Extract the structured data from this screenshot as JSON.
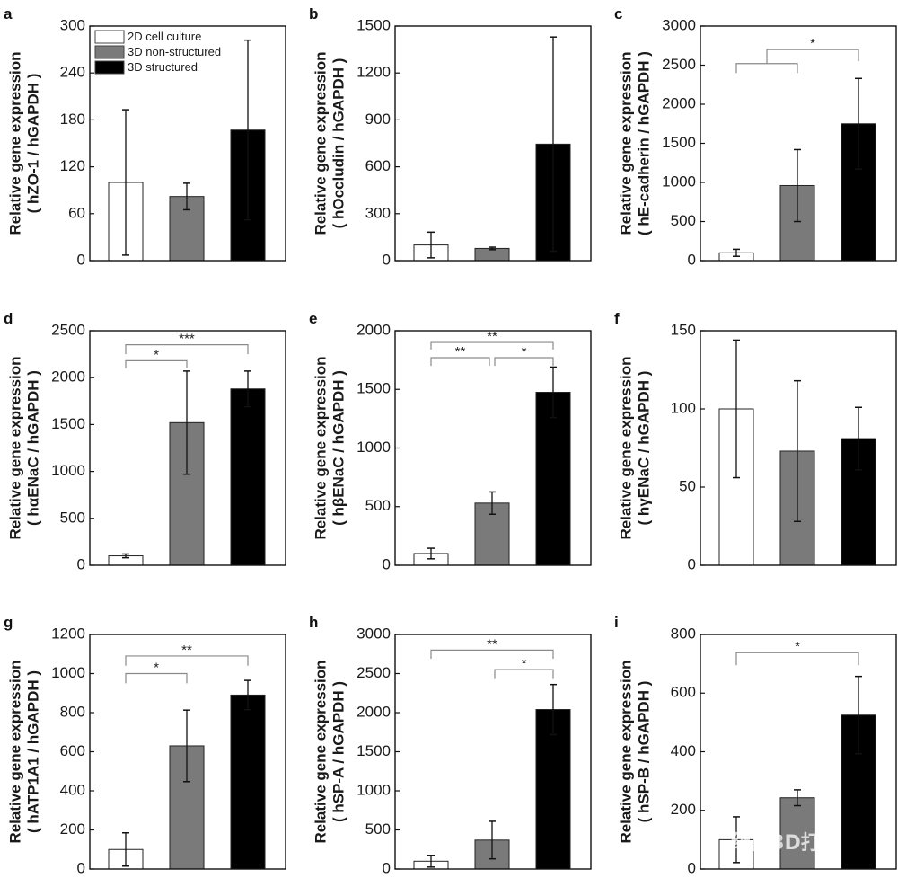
{
  "legend": {
    "items": [
      {
        "label": "2D cell culture",
        "color": "#ffffff"
      },
      {
        "label": "3D non-structured",
        "color": "#7a7a7a"
      },
      {
        "label": "3D structured",
        "color": "#000000"
      }
    ]
  },
  "watermark": "级熊3D打印",
  "chart_data": [
    {
      "type": "bar",
      "panel": "a",
      "title": "",
      "xlabel": "",
      "ylabel": "Relative gene expression",
      "ylabel2": "( hZO-1 / hGAPDH )",
      "ylim": [
        0,
        300
      ],
      "yticks": [
        0,
        60,
        120,
        180,
        240,
        300
      ],
      "categories": [
        "2D cell culture",
        "3D non-structured",
        "3D structured"
      ],
      "values": [
        100,
        82,
        167
      ],
      "errors": [
        93,
        17,
        115
      ],
      "significance": [],
      "show_legend": true
    },
    {
      "type": "bar",
      "panel": "b",
      "ylabel": "Relative gene expression",
      "ylabel2": "( hOccludin / hGAPDH )",
      "ylim": [
        0,
        1500
      ],
      "yticks": [
        0,
        300,
        600,
        900,
        1200,
        1500
      ],
      "categories": [
        "2D cell culture",
        "3D non-structured",
        "3D structured"
      ],
      "values": [
        100,
        78,
        745
      ],
      "errors": [
        82,
        8,
        685
      ],
      "significance": []
    },
    {
      "type": "bar",
      "panel": "c",
      "ylabel": "Relative gene expression",
      "ylabel2": "( hE-cadherin / hGAPDH )",
      "ylim": [
        0,
        3000
      ],
      "yticks": [
        0,
        500,
        1000,
        1500,
        2000,
        2500,
        3000
      ],
      "categories": [
        "2D cell culture",
        "3D non-structured",
        "3D structured"
      ],
      "values": [
        100,
        960,
        1750
      ],
      "errors": [
        45,
        460,
        580
      ],
      "significance": [
        {
          "type": "nested",
          "inner": [
            0,
            1
          ],
          "outer_to": 2,
          "inner_level": 2520,
          "outer_level": 2700,
          "inner_drop": 2400,
          "outer_drop": 2550,
          "label": "*"
        }
      ]
    },
    {
      "type": "bar",
      "panel": "d",
      "ylabel": "Relative gene expression",
      "ylabel2": "( hαENaC / hGAPDH )",
      "ylim": [
        0,
        2500
      ],
      "yticks": [
        0,
        500,
        1000,
        1500,
        2000,
        2500
      ],
      "categories": [
        "2D cell culture",
        "3D non-structured",
        "3D structured"
      ],
      "values": [
        100,
        1520,
        1880
      ],
      "errors": [
        20,
        550,
        190
      ],
      "significance": [
        {
          "from": 0,
          "to": 1,
          "level": 2180,
          "drop": 2100,
          "label": "*"
        },
        {
          "from": 0,
          "to": 2,
          "level": 2350,
          "drop": 2250,
          "label": "***"
        }
      ]
    },
    {
      "type": "bar",
      "panel": "e",
      "ylabel": "Relative gene expression",
      "ylabel2": "( hβENaC / hGAPDH )",
      "ylim": [
        0,
        2000
      ],
      "yticks": [
        0,
        500,
        1000,
        1500,
        2000
      ],
      "categories": [
        "2D cell culture",
        "3D non-structured",
        "3D structured"
      ],
      "values": [
        100,
        530,
        1475
      ],
      "errors": [
        45,
        95,
        215
      ],
      "significance": [
        {
          "from": 0,
          "to": 1,
          "level": 1770,
          "drop": 1700,
          "label": "**"
        },
        {
          "from": 1,
          "to": 2,
          "level": 1770,
          "drop": 1700,
          "label": "*"
        },
        {
          "from": 0,
          "to": 2,
          "level": 1900,
          "drop": 1840,
          "label": "**"
        }
      ]
    },
    {
      "type": "bar",
      "panel": "f",
      "ylabel": "Relative gene expression",
      "ylabel2": "( hγENaC / hGAPDH )",
      "ylim": [
        0,
        150
      ],
      "yticks": [
        0,
        50,
        100,
        150
      ],
      "categories": [
        "2D cell culture",
        "3D non-structured",
        "3D structured"
      ],
      "values": [
        100,
        73,
        81
      ],
      "errors": [
        44,
        45,
        20
      ],
      "significance": []
    },
    {
      "type": "bar",
      "panel": "g",
      "ylabel": "Relative gene expression",
      "ylabel2": "( hATP1A1 / hGAPDH )",
      "ylim": [
        0,
        1200
      ],
      "yticks": [
        0,
        200,
        400,
        600,
        800,
        1000,
        1200
      ],
      "categories": [
        "2D cell culture",
        "3D non-structured",
        "3D structured"
      ],
      "values": [
        100,
        630,
        890
      ],
      "errors": [
        85,
        183,
        75
      ],
      "significance": [
        {
          "from": 0,
          "to": 1,
          "level": 1000,
          "drop": 950,
          "label": "*"
        },
        {
          "from": 0,
          "to": 2,
          "level": 1090,
          "drop": 1040,
          "label": "**"
        }
      ]
    },
    {
      "type": "bar",
      "panel": "h",
      "ylabel": "Relative gene expression",
      "ylabel2": "( hSP-A / hGAPDH )",
      "ylim": [
        0,
        3000
      ],
      "yticks": [
        0,
        500,
        1000,
        1500,
        2000,
        2500,
        3000
      ],
      "categories": [
        "2D cell culture",
        "3D non-structured",
        "3D structured"
      ],
      "values": [
        100,
        370,
        2040
      ],
      "errors": [
        75,
        240,
        320
      ],
      "significance": [
        {
          "from": 1,
          "to": 2,
          "level": 2550,
          "drop": 2430,
          "label": "*"
        },
        {
          "from": 0,
          "to": 2,
          "level": 2800,
          "drop": 2690,
          "label": "**"
        }
      ]
    },
    {
      "type": "bar",
      "panel": "i",
      "ylabel": "Relative gene expression",
      "ylabel2": "( hSP-B / hGAPDH )",
      "ylim": [
        0,
        800
      ],
      "yticks": [
        0,
        200,
        400,
        600,
        800
      ],
      "categories": [
        "2D cell culture",
        "3D non-structured",
        "3D structured"
      ],
      "values": [
        100,
        243,
        525
      ],
      "errors": [
        78,
        27,
        132
      ],
      "significance": [
        {
          "from": 0,
          "to": 2,
          "level": 738,
          "drop": 695,
          "label": "*"
        }
      ]
    }
  ]
}
